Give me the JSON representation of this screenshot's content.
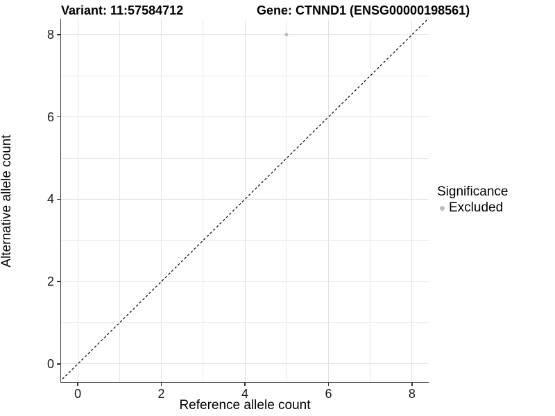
{
  "chart_data": {
    "type": "scatter",
    "title_left": "Variant: 11:57584712",
    "title_right": "Gene: CTNND1 (ENSG00000198561)",
    "xlabel": "Reference allele count",
    "ylabel": "Alternative allele count",
    "xlim": [
      -0.4,
      8.4
    ],
    "ylim": [
      -0.44,
      8.37
    ],
    "x_ticks": [
      0,
      2,
      4,
      6,
      8
    ],
    "y_ticks": [
      0,
      2,
      4,
      6,
      8
    ],
    "grid": true,
    "gridline_step": 1,
    "gridline_color": "#e7e7e7",
    "axis_color": "#404040",
    "points": [
      {
        "x": 5,
        "y": 8,
        "label": "Excluded",
        "color": "#bdbdbd"
      }
    ],
    "reference_line": {
      "equation": "y = x",
      "style": "dashed",
      "color": "#000000"
    },
    "legend": {
      "title": "Significance",
      "position": "right",
      "items": [
        {
          "label": "Excluded",
          "color": "#bdbdbd",
          "marker": "circle"
        }
      ]
    }
  }
}
